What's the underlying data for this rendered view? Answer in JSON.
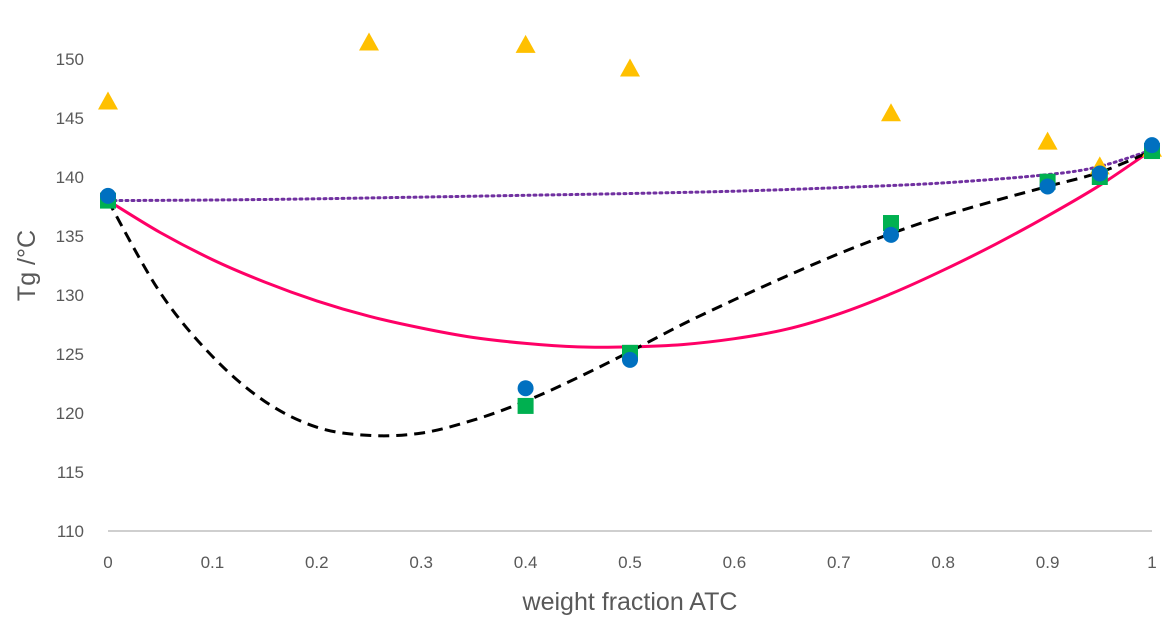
{
  "chart_data": {
    "type": "scatter",
    "title": "",
    "xlabel": "weight fraction ATC",
    "ylabel": "Tg /°C",
    "xlim": [
      0,
      1
    ],
    "ylim": [
      110,
      155
    ],
    "xticks": [
      0,
      0.1,
      0.2,
      0.3,
      0.4,
      0.5,
      0.6,
      0.7,
      0.8,
      0.9,
      1
    ],
    "xtick_labels": [
      "0",
      "0.1",
      "0.2",
      "0.3",
      "0.4",
      "0.5",
      "0.6",
      "0.7",
      "0.8",
      "0.9",
      "1"
    ],
    "yticks": [
      110,
      115,
      120,
      125,
      130,
      135,
      140,
      145,
      150
    ],
    "ytick_labels": [
      "110",
      "115",
      "120",
      "125",
      "130",
      "135",
      "140",
      "145",
      "150"
    ],
    "grid": false,
    "legend": "none",
    "series": [
      {
        "kind": "points",
        "marker": "triangle",
        "color": "#FFC000",
        "x": [
          0,
          0.25,
          0.4,
          0.5,
          0.75,
          0.9,
          0.95,
          1
        ],
        "y": [
          146.3,
          151.3,
          151.1,
          149.1,
          145.3,
          142.9,
          140.8,
          142.3
        ]
      },
      {
        "kind": "points",
        "marker": "square",
        "color": "#00B050",
        "x": [
          0,
          0.4,
          0.5,
          0.75,
          0.9,
          0.95,
          1
        ],
        "y": [
          138,
          120.6,
          125.1,
          136.1,
          139.6,
          140,
          142.2
        ]
      },
      {
        "kind": "points",
        "marker": "circle",
        "color": "#0070C0",
        "x": [
          0,
          0.4,
          0.5,
          0.75,
          0.9,
          0.95,
          1
        ],
        "y": [
          138.4,
          122.1,
          124.5,
          135.1,
          139.2,
          140.3,
          142.7
        ]
      },
      {
        "kind": "line",
        "style": "dotted",
        "color": "#7030A0",
        "x": [
          0,
          0.1,
          0.2,
          0.3,
          0.4,
          0.5,
          0.6,
          0.7,
          0.8,
          0.9,
          0.95,
          1
        ],
        "y": [
          138,
          138.05,
          138.15,
          138.3,
          138.45,
          138.6,
          138.8,
          139.1,
          139.5,
          140.2,
          140.9,
          142.3
        ]
      },
      {
        "kind": "line",
        "style": "solid",
        "color": "#FF0066",
        "x": [
          0,
          0.05,
          0.1,
          0.15,
          0.2,
          0.25,
          0.3,
          0.35,
          0.4,
          0.45,
          0.5,
          0.55,
          0.6,
          0.65,
          0.7,
          0.75,
          0.8,
          0.85,
          0.9,
          0.95,
          1
        ],
        "y": [
          138,
          135.3,
          133,
          131.1,
          129.5,
          128.2,
          127.2,
          126.4,
          125.9,
          125.6,
          125.6,
          125.8,
          126.3,
          127.1,
          128.4,
          130.1,
          132.1,
          134.3,
          136.7,
          139.3,
          142.3
        ]
      },
      {
        "kind": "line",
        "style": "dashed",
        "color": "#000000",
        "x": [
          0,
          0.05,
          0.1,
          0.15,
          0.2,
          0.25,
          0.3,
          0.35,
          0.4,
          0.45,
          0.5,
          0.55,
          0.6,
          0.65,
          0.7,
          0.75,
          0.8,
          0.85,
          0.9,
          0.95,
          1
        ],
        "y": [
          138,
          130.2,
          124.8,
          121,
          118.8,
          118.1,
          118.3,
          119.4,
          121,
          123,
          125.2,
          127.5,
          129.6,
          131.6,
          133.5,
          135.2,
          136.7,
          138,
          139.2,
          140.4,
          142.2
        ]
      }
    ]
  }
}
